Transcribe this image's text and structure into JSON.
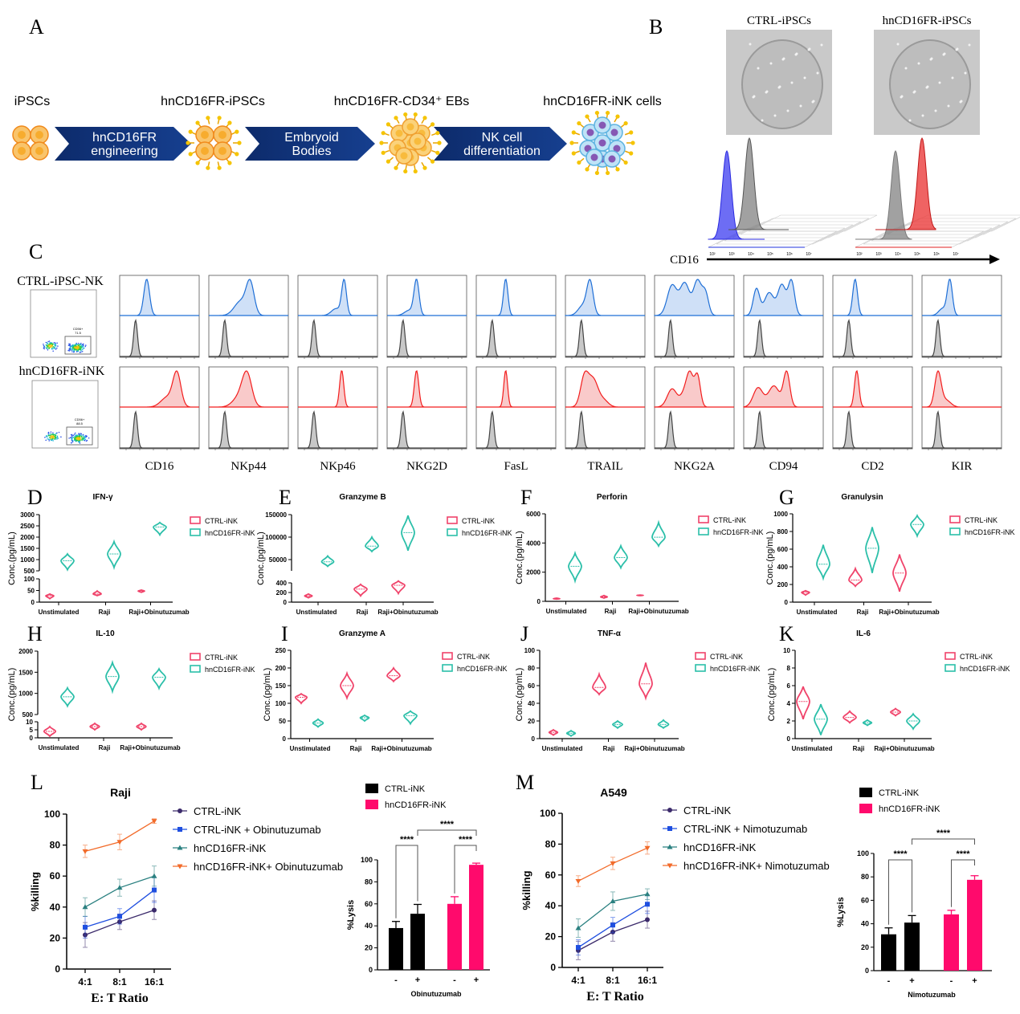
{
  "panel_letters": [
    "A",
    "B",
    "C",
    "D",
    "E",
    "F",
    "G",
    "H",
    "I",
    "J",
    "K",
    "L",
    "M"
  ],
  "panel_a": {
    "stages": [
      "iPSCs",
      "hnCD16FR-iPSCs",
      "hnCD16FR-CD34⁺ EBs",
      "hnCD16FR-iNK cells"
    ],
    "arrows": [
      [
        "hnCD16FR",
        "engineering"
      ],
      [
        "Embryoid",
        "Bodies"
      ],
      [
        "NK cell",
        "differentiation"
      ]
    ]
  },
  "panel_b": {
    "titles": [
      "CTRL-iPSCs",
      "hnCD16FR-iPSCs"
    ],
    "axis_label": "CD16",
    "ticks": [
      "10²",
      "10³",
      "10⁴",
      "10⁵",
      "10⁶",
      "10⁷"
    ],
    "peaks_log10": {
      "ctrl_ipsc": 2.6,
      "isotype": 3.7,
      "hn_ipsc": 4.4
    }
  },
  "panel_c": {
    "rows": [
      "CTRL-iPSC-NK",
      "hnCD16FR-iNK"
    ],
    "gates": [
      {
        "label": "CD56+",
        "value": "71.5"
      },
      {
        "label": "CD56+",
        "value": "88.5"
      }
    ],
    "markers": [
      {
        "name": "CD16",
        "ctrl": [
          [
            1.7,
            0.18,
            1
          ]
        ],
        "hn": [
          [
            3.6,
            0.25,
            1
          ],
          [
            3.0,
            0.4,
            0.3
          ]
        ]
      },
      {
        "name": "NKp44",
        "ctrl": [
          [
            2.6,
            0.25,
            1
          ],
          [
            2.0,
            0.4,
            0.45
          ]
        ],
        "hn": [
          [
            2.4,
            0.3,
            1
          ],
          [
            1.9,
            0.4,
            0.3
          ]
        ]
      },
      {
        "name": "NKp46",
        "ctrl": [
          [
            2.9,
            0.15,
            1
          ],
          [
            2.4,
            0.3,
            0.2
          ]
        ],
        "hn": [
          [
            2.75,
            0.13,
            1
          ]
        ]
      },
      {
        "name": "NKG2D",
        "ctrl": [
          [
            1.85,
            0.16,
            1
          ],
          [
            1.4,
            0.3,
            0.15
          ]
        ],
        "hn": [
          [
            1.85,
            0.14,
            1
          ]
        ]
      },
      {
        "name": "FasL",
        "ctrl": [
          [
            1.85,
            0.14,
            1
          ]
        ],
        "hn": [
          [
            1.85,
            0.12,
            1
          ]
        ]
      },
      {
        "name": "TRAIL",
        "ctrl": [
          [
            1.55,
            0.2,
            1
          ],
          [
            1.1,
            0.3,
            0.3
          ]
        ],
        "hn": [
          [
            1.2,
            0.25,
            0.9
          ],
          [
            1.75,
            0.3,
            0.8
          ],
          [
            2.4,
            0.3,
            0.2
          ]
        ]
      },
      {
        "name": "NKG2A",
        "ctrl": [
          [
            1.1,
            0.3,
            0.7
          ],
          [
            1.9,
            0.3,
            0.75
          ],
          [
            2.7,
            0.25,
            0.8
          ],
          [
            3.2,
            0.2,
            0.5
          ]
        ],
        "hn": [
          [
            1.1,
            0.3,
            0.5
          ],
          [
            2.0,
            0.3,
            0.5
          ],
          [
            2.7,
            0.18,
            0.85
          ],
          [
            2.25,
            0.2,
            0.6
          ]
        ]
      },
      {
        "name": "CD94",
        "ctrl": [
          [
            0.8,
            0.2,
            0.7
          ],
          [
            1.6,
            0.3,
            0.6
          ],
          [
            2.4,
            0.25,
            0.8
          ],
          [
            3.0,
            0.2,
            0.9
          ]
        ],
        "hn": [
          [
            0.9,
            0.3,
            0.5
          ],
          [
            1.9,
            0.35,
            0.55
          ],
          [
            2.7,
            0.2,
            0.9
          ]
        ]
      },
      {
        "name": "CD2",
        "ctrl": [
          [
            1.4,
            0.15,
            1
          ]
        ],
        "hn": [
          [
            1.5,
            0.14,
            1
          ]
        ]
      },
      {
        "name": "KIR",
        "ctrl": [
          [
            1.75,
            0.16,
            1
          ],
          [
            1.3,
            0.25,
            0.2
          ]
        ],
        "hn": [
          [
            1.0,
            0.2,
            1
          ],
          [
            1.5,
            0.3,
            0.2
          ]
        ]
      }
    ]
  },
  "colors": {
    "ctrl_violin": "#f0436a",
    "hn_violin": "#2bbfa9",
    "ctrl_bar": "#000000",
    "hn_bar": "#ff0a6c",
    "ctrl_line": "#3b2a6b",
    "ctrl_anti_line": "#1f4fe0",
    "hn_line": "#2a8080",
    "hn_anti_line": "#f26b2a",
    "flow_ctrl": "#1f6fd6",
    "flow_hn": "#f21d1d",
    "flow_iso": "#444444"
  },
  "chart_data": {
    "cytokines": [
      {
        "panel": "D",
        "type": "violin",
        "title": "IFN-γ",
        "ylabel": "Conc.(pg/mL)",
        "categories": [
          "Unstimulated",
          "Raji",
          "Raji+Obinutuzumab"
        ],
        "yticks": [
          0,
          50,
          100,
          500,
          1000,
          1500,
          2000,
          2500,
          3000
        ],
        "axis_break": [
          100,
          500
        ],
        "series": [
          {
            "name": "CTRL-iNK",
            "median": [
              27,
              35,
              48
            ],
            "min": [
              15,
              28,
              42
            ],
            "max": [
              35,
              48,
              52
            ]
          },
          {
            "name": "hnCD16FR-iNK",
            "median": [
              950,
              1250,
              2450
            ],
            "min": [
              550,
              650,
              2100
            ],
            "max": [
              1250,
              1800,
              2650
            ]
          }
        ]
      },
      {
        "panel": "E",
        "type": "violin",
        "title": "Granzyme B",
        "ylabel": "Conc.(pg/mL)",
        "categories": [
          "Unstimulated",
          "Raji",
          "Raji+Obinutuzumab"
        ],
        "yticks": [
          0,
          200,
          400,
          50000,
          100000,
          150000
        ],
        "axis_break": [
          400,
          25000
        ],
        "series": [
          {
            "name": "CTRL-iNK",
            "median": [
              130,
              270,
              350
            ],
            "min": [
              90,
              130,
              180
            ],
            "max": [
              170,
              370,
              440
            ]
          },
          {
            "name": "hnCD16FR-iNK",
            "median": [
              45000,
              80000,
              110000
            ],
            "min": [
              35000,
              68000,
              70000
            ],
            "max": [
              58000,
              100000,
              148000
            ]
          }
        ]
      },
      {
        "panel": "F",
        "type": "violin",
        "title": "Perforin",
        "ylabel": "Conc.(pg/mL)",
        "categories": [
          "Unstimulated",
          "Raji",
          "Raji+Obinutuzumab"
        ],
        "yticks": [
          0,
          2000,
          4000,
          6000
        ],
        "series": [
          {
            "name": "CTRL-iNK",
            "median": [
              180,
              300,
              410
            ],
            "min": [
              150,
              220,
              390
            ],
            "max": [
              220,
              400,
              430
            ]
          },
          {
            "name": "hnCD16FR-iNK",
            "median": [
              2400,
              3000,
              4400
            ],
            "min": [
              1400,
              2300,
              3800
            ],
            "max": [
              3300,
              3800,
              5400
            ]
          }
        ]
      },
      {
        "panel": "G",
        "type": "violin",
        "title": "Granulysin",
        "ylabel": "Conc.(pg/mL)",
        "categories": [
          "Unstimulated",
          "Raji",
          "Raji+Obinutuzumab"
        ],
        "yticks": [
          0,
          200,
          400,
          600,
          800,
          1000
        ],
        "series": [
          {
            "name": "CTRL-iNK",
            "median": [
              110,
              250,
              330
            ],
            "min": [
              80,
              180,
              120
            ],
            "max": [
              130,
              380,
              540
            ]
          },
          {
            "name": "hnCD16FR-iNK",
            "median": [
              430,
              610,
              880
            ],
            "min": [
              270,
              330,
              750
            ],
            "max": [
              650,
              850,
              980
            ]
          }
        ]
      },
      {
        "panel": "H",
        "type": "violin",
        "title": "IL-10",
        "ylabel": "Conc.(pg/mL)",
        "categories": [
          "Unstimulated",
          "Raji",
          "Raji+Obinutuzumab"
        ],
        "yticks": [
          0,
          5,
          10,
          500,
          1000,
          1500,
          2000
        ],
        "axis_break": [
          10,
          500
        ],
        "series": [
          {
            "name": "CTRL-iNK",
            "median": [
              4,
              7,
              7
            ],
            "min": [
              1,
              5,
              5
            ],
            "max": [
              7,
              9,
              9
            ]
          },
          {
            "name": "hnCD16FR-iNK",
            "median": [
              920,
              1400,
              1380
            ],
            "min": [
              700,
              1050,
              1120
            ],
            "max": [
              1130,
              1730,
              1580
            ]
          }
        ]
      },
      {
        "panel": "I",
        "type": "violin",
        "title": "Granzyme A",
        "ylabel": "Conc.(pg/mL)",
        "categories": [
          "Unstimulated",
          "Raji",
          "Raji+Obinutuzumab"
        ],
        "yticks": [
          0,
          50,
          100,
          150,
          200,
          250
        ],
        "series": [
          {
            "name": "CTRL-iNK",
            "median": [
              117,
              150,
              178
            ],
            "min": [
              100,
              115,
              162
            ],
            "max": [
              127,
              185,
              200
            ]
          },
          {
            "name": "hnCD16FR-iNK",
            "median": [
              44,
              59,
              65
            ],
            "min": [
              33,
              50,
              42
            ],
            "max": [
              55,
              66,
              78
            ]
          }
        ]
      },
      {
        "panel": "J",
        "type": "violin",
        "title": "TNF-α",
        "ylabel": "Conc.(pg/mL)",
        "categories": [
          "Unstimulated",
          "Raji",
          "Raji+Obinutuzumab"
        ],
        "yticks": [
          0,
          20,
          40,
          60,
          80,
          100
        ],
        "series": [
          {
            "name": "CTRL-iNK",
            "median": [
              7,
              58,
              62
            ],
            "min": [
              4,
              50,
              46
            ],
            "max": [
              10,
              73,
              86
            ]
          },
          {
            "name": "hnCD16FR-iNK",
            "median": [
              6,
              16,
              16
            ],
            "min": [
              3,
              12,
              12
            ],
            "max": [
              9,
              20,
              21
            ]
          }
        ]
      },
      {
        "panel": "K",
        "type": "violin",
        "title": "IL-6",
        "ylabel": "Conc.(pg/mL)",
        "categories": [
          "Unstimulated",
          "Raji",
          "Raji+Obinutuzumab"
        ],
        "yticks": [
          0,
          2,
          4,
          6,
          8,
          10
        ],
        "series": [
          {
            "name": "CTRL-iNK",
            "median": [
              4.2,
              2.4,
              3.0
            ],
            "min": [
              2.2,
              1.8,
              2.6
            ],
            "max": [
              5.9,
              3.1,
              3.4
            ]
          },
          {
            "name": "hnCD16FR-iNK",
            "median": [
              2.2,
              1.8,
              2.0
            ],
            "min": [
              0.4,
              1.5,
              1.1
            ],
            "max": [
              3.9,
              2.1,
              2.8
            ]
          }
        ]
      }
    ],
    "killing": [
      {
        "panel": "L",
        "type": "line",
        "title": "Raji",
        "xlabel": "E: T Ratio",
        "ylabel": "%killing",
        "categories": [
          "4:1",
          "8:1",
          "16:1"
        ],
        "ylim": [
          0,
          100
        ],
        "yticks": [
          0,
          20,
          40,
          60,
          80,
          100
        ],
        "series": [
          {
            "name": "CTRL-iNK",
            "values": [
              22,
              30.5,
              38
            ],
            "error": [
              8,
              5,
              6
            ]
          },
          {
            "name": "CTRL-iNK + Obinutuzumab",
            "values": [
              27,
              34,
              51
            ],
            "error": [
              7,
              5,
              8
            ]
          },
          {
            "name": "hnCD16FR-iNK",
            "values": [
              40,
              52.5,
              60
            ],
            "error": [
              6,
              5.5,
              6.5
            ]
          },
          {
            "name": "hnCD16FR-iNK+ Obinutuzumab",
            "values": [
              76,
              82,
              95.5
            ],
            "error": [
              4,
              5,
              1.5
            ]
          }
        ]
      },
      {
        "panel": "M",
        "type": "line",
        "title": "A549",
        "xlabel": "E: T Ratio",
        "ylabel": "%killing",
        "categories": [
          "4:1",
          "8:1",
          "16:1"
        ],
        "ylim": [
          0,
          100
        ],
        "yticks": [
          0,
          20,
          40,
          60,
          80,
          100
        ],
        "series": [
          {
            "name": "CTRL-iNK",
            "values": [
              11,
              23,
              31
            ],
            "error": [
              6,
              6,
              5.5
            ]
          },
          {
            "name": "CTRL-iNK + Nimotuzumab",
            "values": [
              13,
              27.5,
              41
            ],
            "error": [
              5,
              5,
              6
            ]
          },
          {
            "name": "hnCD16FR-iNK",
            "values": [
              25.5,
              43,
              47.5
            ],
            "error": [
              6,
              6,
              3.5
            ]
          },
          {
            "name": "hnCD16FR-iNK+ Nimotuzumab",
            "values": [
              56,
              67.5,
              77.5
            ],
            "error": [
              3.5,
              4,
              4
            ]
          }
        ]
      }
    ],
    "lysis": [
      {
        "panel": "L",
        "type": "bar",
        "ylabel": "%Lysis",
        "xlabel": "Obinutuzumab",
        "categories": [
          "-",
          "+",
          "-",
          "+"
        ],
        "groups": [
          "CTRL-iNK",
          "CTRL-iNK",
          "hnCD16FR-iNK",
          "hnCD16FR-iNK"
        ],
        "legend": [
          "CTRL-iNK",
          "hnCD16FR-iNK"
        ],
        "values": [
          38,
          51,
          60,
          95.5
        ],
        "error": [
          6,
          8.5,
          6.5,
          1.5
        ],
        "ylim": [
          0,
          100
        ],
        "yticks": [
          0,
          20,
          40,
          60,
          80,
          100
        ],
        "significance": [
          "****",
          "****",
          "****"
        ]
      },
      {
        "panel": "M",
        "type": "bar",
        "ylabel": "%Lysis",
        "xlabel": "Nimotuzumab",
        "categories": [
          "-",
          "+",
          "-",
          "+"
        ],
        "groups": [
          "CTRL-iNK",
          "CTRL-iNK",
          "hnCD16FR-iNK",
          "hnCD16FR-iNK"
        ],
        "legend": [
          "CTRL-iNK",
          "hnCD16FR-iNK"
        ],
        "values": [
          31,
          41,
          48,
          77.5
        ],
        "error": [
          5.5,
          6,
          3.5,
          3.5
        ],
        "ylim": [
          0,
          100
        ],
        "yticks": [
          0,
          20,
          40,
          60,
          80,
          100
        ],
        "significance": [
          "****",
          "****",
          "****"
        ]
      }
    ]
  }
}
